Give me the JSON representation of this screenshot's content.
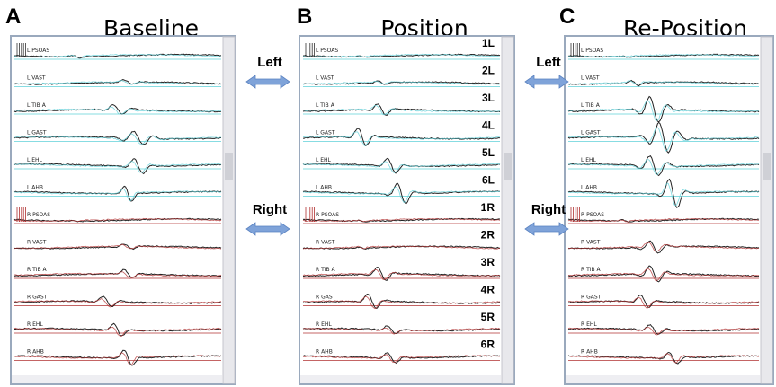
{
  "panels": [
    {
      "letter": "A",
      "title": "Baseline"
    },
    {
      "letter": "B",
      "title": "Position"
    },
    {
      "letter": "C",
      "title": "Re-Position"
    }
  ],
  "arrow_labels": [
    "Left",
    "Right"
  ],
  "channel_names": [
    "L PSOAS",
    "L VAST",
    "L TIB A",
    "L GAST",
    "L EHL",
    "L AHB",
    "R PSOAS",
    "R VAST",
    "R TIB A",
    "R GAST",
    "R EHL",
    "R AHB"
  ],
  "channel_numbers": [
    "1L",
    "2L",
    "3L",
    "4L",
    "5L",
    "6L",
    "1R",
    "2R",
    "3R",
    "4R",
    "5R",
    "6R"
  ]
}
